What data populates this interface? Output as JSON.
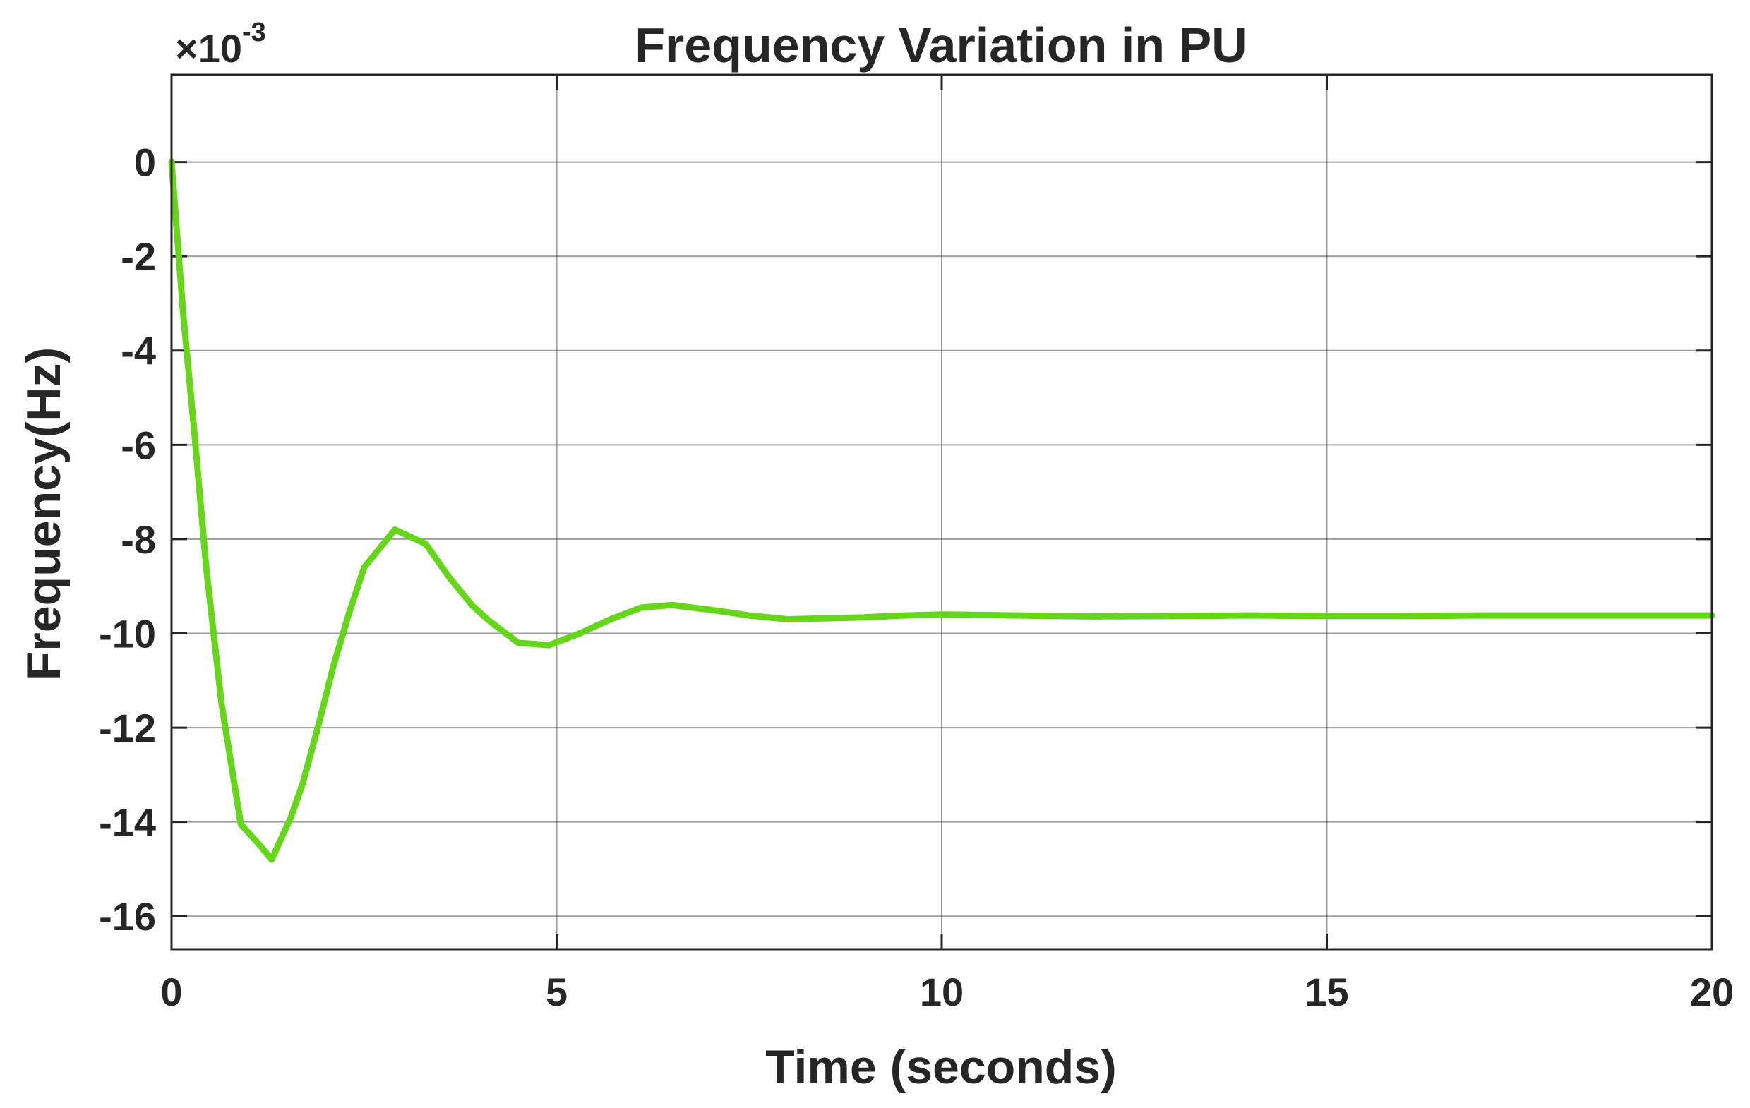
{
  "chart_data": {
    "type": "line",
    "title": "Frequency Variation in PU",
    "xlabel": "Time (seconds)",
    "ylabel": "Frequency(Hz)",
    "y_exponent_label": "×10",
    "y_exponent_power": "-3",
    "xlim": [
      0,
      20
    ],
    "ylim": [
      -16.7,
      1.85
    ],
    "x_ticks": [
      0,
      5,
      10,
      15,
      20
    ],
    "x_tick_labels": [
      "0",
      "5",
      "10",
      "15",
      "20"
    ],
    "y_ticks": [
      0,
      -2,
      -4,
      -6,
      -8,
      -10,
      -12,
      -14,
      -16
    ],
    "y_tick_labels": [
      "0",
      "-2",
      "-4",
      "-6",
      "-8",
      "-10",
      "-12",
      "-14",
      "-16"
    ],
    "grid": true,
    "line_color": "#66d61a",
    "grid_color": "#262626",
    "series": [
      {
        "x": [
          0,
          0.15,
          0.3,
          0.45,
          0.65,
          0.9,
          1.15,
          1.3,
          1.55,
          1.7,
          1.9,
          2.1,
          2.3,
          2.5,
          2.7,
          2.9,
          3.1,
          3.3,
          3.6,
          3.9,
          4.1,
          4.5,
          4.9,
          5.3,
          5.7,
          6.1,
          6.5,
          7.0,
          7.5,
          8.0,
          8.5,
          9.0,
          9.5,
          10.0,
          11.0,
          12.0,
          13.0,
          14.0,
          15.0,
          16.0,
          17.0,
          18.0,
          19.0,
          20.0
        ],
        "y": [
          0,
          -3.2,
          -5.8,
          -8.6,
          -11.5,
          -14.05,
          -14.5,
          -14.8,
          -13.9,
          -13.2,
          -12.0,
          -10.7,
          -9.6,
          -8.6,
          -8.2,
          -7.8,
          -7.95,
          -8.1,
          -8.8,
          -9.4,
          -9.7,
          -10.2,
          -10.25,
          -10.0,
          -9.7,
          -9.45,
          -9.4,
          -9.5,
          -9.62,
          -9.7,
          -9.68,
          -9.66,
          -9.62,
          -9.6,
          -9.62,
          -9.64,
          -9.63,
          -9.62,
          -9.63,
          -9.63,
          -9.62,
          -9.62,
          -9.62,
          -9.62
        ]
      }
    ]
  }
}
